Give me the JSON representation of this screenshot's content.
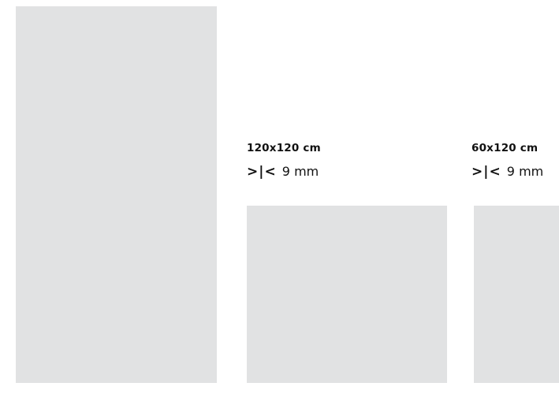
{
  "tiles": [
    {
      "size": "120x120 cm",
      "joint_symbol": ">|<",
      "joint_value": "9 mm"
    },
    {
      "size": "60x120 cm",
      "joint_symbol": ">|<",
      "joint_value": "9 mm"
    }
  ],
  "colors": {
    "tile": "#e1e2e3",
    "background": "#ffffff",
    "text": "#111111"
  }
}
